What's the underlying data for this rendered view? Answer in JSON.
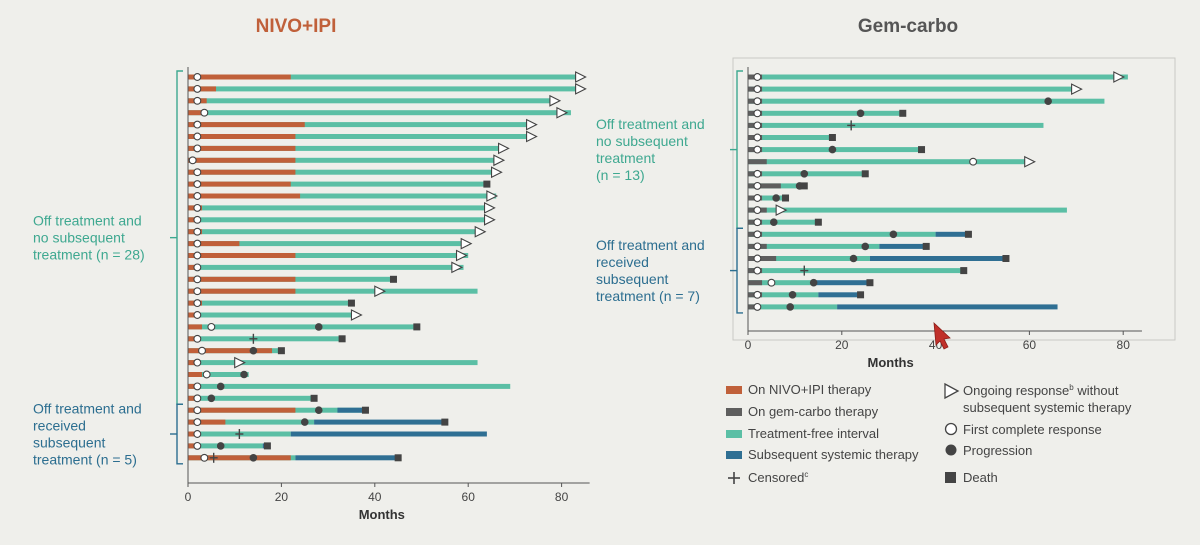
{
  "colors": {
    "nivo": "#c0603a",
    "gem": "#5e5e5e",
    "tfi": "#5bbfa5",
    "subsequent": "#2f6f93",
    "groupGreen": "#3ea890",
    "groupBlue": "#2c6e90",
    "nivoTitle": "#c0603a",
    "gemTitle": "#555555",
    "axis": "#555555",
    "marker": "#444444",
    "pointer": "#c0302a"
  },
  "chart_data": [
    {
      "type": "swimmer",
      "title": "NIVO+IPI",
      "xlabel": "Months",
      "xlim": [
        0,
        86
      ],
      "xticks": [
        0,
        20,
        40,
        60,
        80
      ],
      "groups": [
        {
          "label": [
            "Off treatment and",
            "no subsequent",
            "treatment (n = 28)"
          ],
          "first": 0,
          "last": 27
        },
        {
          "label": [
            "Off treatment and",
            "received",
            "subsequent",
            "treatment (n = 5)"
          ],
          "first": 28,
          "last": 32
        }
      ],
      "rows": [
        {
          "on": 22,
          "tfi": 84,
          "cr": 2,
          "ongoing": 83
        },
        {
          "on": 6,
          "tfi": 84,
          "cr": 2,
          "ongoing": 83
        },
        {
          "on": 4,
          "tfi": 78,
          "cr": 2,
          "ongoing": 77.5
        },
        {
          "on": 3,
          "tfi": 82,
          "cr": 3.5,
          "ongoing": 79
        },
        {
          "on": 25,
          "tfi": 73,
          "cr": 2,
          "ongoing": 72.5
        },
        {
          "on": 23,
          "tfi": 73,
          "cr": 2,
          "ongoing": 72.5
        },
        {
          "on": 23,
          "tfi": 67,
          "cr": 2,
          "ongoing": 66.5
        },
        {
          "on": 23,
          "tfi": 66,
          "cr": 1,
          "ongoing": 65.5
        },
        {
          "on": 23,
          "tfi": 66,
          "cr": 2,
          "ongoing": 65
        },
        {
          "on": 22,
          "tfi": 64,
          "cr": 2,
          "death": 64
        },
        {
          "on": 24,
          "tfi": 66,
          "cr": 2,
          "ongoing": 64
        },
        {
          "on": 3,
          "tfi": 65,
          "cr": 2,
          "ongoing": 63.5
        },
        {
          "on": 2,
          "tfi": 64,
          "cr": 2,
          "ongoing": 63.5
        },
        {
          "on": 3,
          "tfi": 63,
          "cr": 2,
          "ongoing": 61.5
        },
        {
          "on": 11,
          "tfi": 60,
          "cr": 2,
          "ongoing": 58.5
        },
        {
          "on": 23,
          "tfi": 60,
          "cr": 2,
          "ongoing": 57.5
        },
        {
          "on": 2,
          "tfi": 59,
          "cr": 2,
          "ongoing": 56.5
        },
        {
          "on": 23,
          "tfi": 44,
          "cr": 2,
          "death": 44
        },
        {
          "on": 23,
          "tfi": 62,
          "cr": 2,
          "ongoing": 40
        },
        {
          "on": 3,
          "tfi": 35,
          "cr": 2,
          "death": 35
        },
        {
          "on": 2,
          "tfi": 36,
          "cr": 2,
          "ongoing": 35
        },
        {
          "on": 3,
          "tfi": 49,
          "cr": 5,
          "prog": 28,
          "death": 49
        },
        {
          "on": 2,
          "tfi": 33,
          "cr": 2,
          "censor": 14,
          "death": 33
        },
        {
          "on": 18,
          "tfi": 20,
          "cr": 3,
          "prog": 14,
          "death": 20
        },
        {
          "on": 2,
          "tfi": 62,
          "cr": 2,
          "ongoing": 10
        },
        {
          "on": 3,
          "tfi": 13,
          "cr": 4,
          "prog": 12
        },
        {
          "on": 2,
          "tfi": 69,
          "cr": 2,
          "prog": 7
        },
        {
          "on": 2,
          "tfi": 27,
          "cr": 2,
          "prog": 5,
          "death": 27
        }
      ],
      "rows_sub": [
        {
          "on": 23,
          "tfi": 38,
          "sub": [
            32,
            38
          ],
          "cr": 2,
          "prog": 28,
          "death": 38
        },
        {
          "on": 8,
          "tfi": 27,
          "sub": [
            27,
            55
          ],
          "cr": 2,
          "prog": 25,
          "death": 55
        },
        {
          "on": 2,
          "tfi": 22,
          "sub": [
            22,
            64
          ],
          "cr": 2,
          "censor": 11
        },
        {
          "on": 2,
          "tfi": 16,
          "sub": [
            16,
            17
          ],
          "cr": 2,
          "prog": 7,
          "death": 17
        },
        {
          "on": 22,
          "tfi": 23,
          "sub": [
            23,
            45
          ],
          "cr": 3.5,
          "censor": 5.5,
          "prog": 14,
          "death": 45
        }
      ]
    },
    {
      "type": "swimmer",
      "title": "Gem-carbo",
      "xlabel": "Months",
      "xlim": [
        0,
        84
      ],
      "xticks": [
        0,
        20,
        40,
        60,
        80
      ],
      "groups": [
        {
          "label": [
            "Off treatment and",
            "no subsequent",
            "treatment",
            "(n = 13)"
          ],
          "first": 0,
          "last": 12
        },
        {
          "label": [
            "Off treatment and",
            "received",
            "subsequent",
            "treatment (n = 7)"
          ],
          "first": 13,
          "last": 19
        }
      ],
      "rows": [
        {
          "on": 3,
          "tfi": 81,
          "cr": 2,
          "ongoing": 78
        },
        {
          "on": 3,
          "tfi": 69,
          "cr": 2,
          "ongoing": 69
        },
        {
          "on": 3,
          "tfi": 76,
          "cr": 2,
          "prog": 64
        },
        {
          "on": 3,
          "tfi": 33,
          "cr": 2,
          "prog": 24,
          "death": 33
        },
        {
          "on": 3,
          "tfi": 63,
          "cr": 2,
          "censor": 22
        },
        {
          "on": 3,
          "tfi": 18,
          "cr": 2,
          "death": 18
        },
        {
          "on": 3,
          "tfi": 37,
          "cr": 2,
          "prog": 18,
          "death": 37
        },
        {
          "on": 4,
          "tfi": 59,
          "cr": 48,
          "ongoing": 59
        },
        {
          "on": 3,
          "tfi": 25,
          "cr": 2,
          "prog": 12,
          "death": 25
        },
        {
          "on": 7,
          "tfi": 12,
          "cr": 2,
          "prog": 11,
          "death": 12
        },
        {
          "on": 3,
          "tfi": 8,
          "cr": 2,
          "prog": 6,
          "death": 8
        },
        {
          "on": 4,
          "tfi": 68,
          "cr": 2,
          "ongoing": 6
        },
        {
          "on": 3,
          "tfi": 15,
          "cr": 2,
          "prog": 5.5,
          "death": 15
        }
      ],
      "rows_sub": [
        {
          "on": 3,
          "tfi": 40,
          "sub": [
            40,
            47
          ],
          "cr": 2,
          "prog": 31,
          "death": 47
        },
        {
          "on": 4,
          "tfi": 28,
          "sub": [
            28,
            38
          ],
          "cr": 2,
          "prog": 25,
          "death": 38
        },
        {
          "on": 6,
          "tfi": 26,
          "sub": [
            26,
            55
          ],
          "cr": 2,
          "prog": 22.5,
          "death": 55
        },
        {
          "on": 3,
          "tfi": 46,
          "cr": 2,
          "censor": 12,
          "death": 46
        },
        {
          "on": 3,
          "tfi": 14,
          "sub": [
            14,
            26
          ],
          "cr": 5,
          "prog": 14,
          "death": 26
        },
        {
          "on": 3,
          "tfi": 15,
          "sub": [
            15,
            24
          ],
          "cr": 2,
          "prog": 9.5,
          "death": 24
        },
        {
          "on": 2,
          "tfi": 19,
          "sub": [
            19,
            66
          ],
          "cr": 2,
          "prog": 9
        }
      ]
    }
  ],
  "legend": {
    "on_nivo": "On NIVO+IPI therapy",
    "on_gem": "On gem-carbo therapy",
    "tfi": "Treatment-free interval",
    "subsequent": "Subsequent systemic therapy",
    "censored": "Censored",
    "censored_sup": "c",
    "ongoing_a": "Ongoing response",
    "ongoing_sup": "b",
    "ongoing_b": " without",
    "ongoing_c": "subsequent systemic therapy",
    "first_cr": "First complete response",
    "progression": "Progression",
    "death": "Death"
  }
}
